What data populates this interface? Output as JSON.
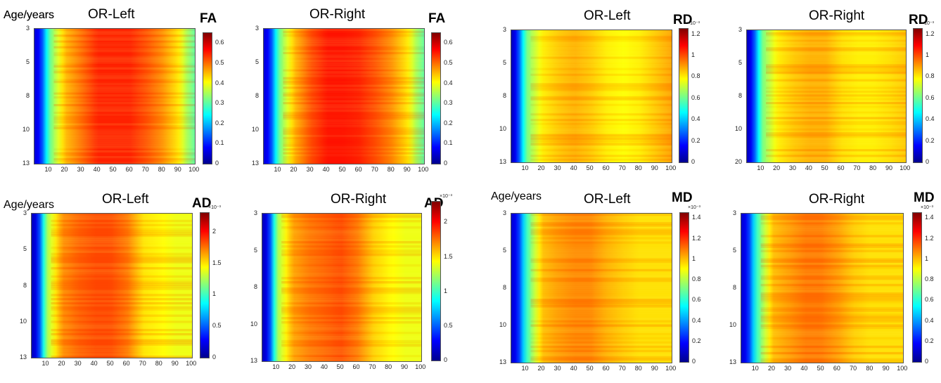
{
  "colors": {
    "jet": [
      "#00008f",
      "#0000ff",
      "#0080ff",
      "#00ffff",
      "#80ff80",
      "#ffff00",
      "#ff8000",
      "#ff0000",
      "#800000"
    ]
  },
  "panels": [
    {
      "id": "fa-left",
      "title": "OR-Left",
      "metric": "FA",
      "ylabel": "Age/years",
      "y_ticks": [
        "3",
        "5",
        "8",
        "10",
        "13"
      ],
      "x_ticks": [
        "10",
        "20",
        "30",
        "40",
        "50",
        "60",
        "70",
        "80",
        "90",
        "100"
      ],
      "cbar_ticks": [
        "0",
        "0.1",
        "0.2",
        "0.3",
        "0.4",
        "0.5",
        "0.6"
      ],
      "cbar_scale": ""
    },
    {
      "id": "fa-right",
      "title": "OR-Right",
      "metric": "FA",
      "ylabel": "",
      "y_ticks": [
        "3",
        "5",
        "8",
        "10",
        "13"
      ],
      "x_ticks": [
        "10",
        "20",
        "30",
        "40",
        "50",
        "60",
        "70",
        "80",
        "90",
        "100"
      ],
      "cbar_ticks": [
        "0",
        "0.1",
        "0.2",
        "0.3",
        "0.4",
        "0.5",
        "0.6"
      ],
      "cbar_scale": ""
    },
    {
      "id": "rd-left",
      "title": "OR-Left",
      "metric": "RD",
      "ylabel": "Age/years",
      "y_ticks": [
        "3",
        "5",
        "8",
        "10",
        "13"
      ],
      "x_ticks": [
        "10",
        "20",
        "30",
        "40",
        "50",
        "60",
        "70",
        "80",
        "90",
        "100"
      ],
      "cbar_ticks": [
        "0",
        "0.2",
        "0.4",
        "0.6",
        "0.8",
        "1",
        "1.2"
      ],
      "cbar_scale": "×10⁻³"
    },
    {
      "id": "rd-right",
      "title": "OR-Right",
      "metric": "RD",
      "ylabel": "",
      "y_ticks": [
        "3",
        "5",
        "8",
        "10",
        "20"
      ],
      "x_ticks": [
        "10",
        "20",
        "30",
        "40",
        "50",
        "60",
        "70",
        "80",
        "90",
        "100"
      ],
      "cbar_ticks": [
        "0",
        "0.2",
        "0.4",
        "0.6",
        "0.8",
        "1",
        "1.2"
      ],
      "cbar_scale": "×10⁻³"
    },
    {
      "id": "ad-left",
      "title": "OR-Left",
      "metric": "AD",
      "ylabel": "Age/years",
      "y_ticks": [
        "3",
        "5",
        "8",
        "10",
        "13"
      ],
      "x_ticks": [
        "10",
        "20",
        "30",
        "40",
        "50",
        "60",
        "70",
        "80",
        "90",
        "100"
      ],
      "cbar_ticks": [
        "0",
        "0.5",
        "1",
        "1.5",
        "2"
      ],
      "cbar_scale": "×10⁻³"
    },
    {
      "id": "ad-right",
      "title": "OR-Right",
      "metric": "AD",
      "ylabel": "",
      "y_ticks": [
        "3",
        "5",
        "8",
        "10",
        "13"
      ],
      "x_ticks": [
        "10",
        "20",
        "30",
        "40",
        "50",
        "60",
        "70",
        "80",
        "90",
        "100"
      ],
      "cbar_ticks": [
        "0",
        "0.5",
        "1",
        "1.5",
        "2"
      ],
      "cbar_scale": "×10⁻³"
    },
    {
      "id": "md-left",
      "title": "OR-Left",
      "metric": "MD",
      "ylabel": "Age/years",
      "y_ticks": [
        "3",
        "5",
        "8",
        "10",
        "13"
      ],
      "x_ticks": [
        "10",
        "20",
        "30",
        "40",
        "50",
        "60",
        "70",
        "80",
        "90",
        "100"
      ],
      "cbar_ticks": [
        "0",
        "0.2",
        "0.4",
        "0.6",
        "0.8",
        "1",
        "1.2",
        "1.4"
      ],
      "cbar_scale": "×10⁻³"
    },
    {
      "id": "md-right",
      "title": "OR-Right",
      "metric": "MD",
      "ylabel": "",
      "y_ticks": [
        "3",
        "5",
        "8",
        "10",
        "13"
      ],
      "x_ticks": [
        "10",
        "20",
        "30",
        "40",
        "50",
        "60",
        "70",
        "80",
        "90",
        "100"
      ],
      "cbar_ticks": [
        "0",
        "0.2",
        "0.4",
        "0.6",
        "0.8",
        "1",
        "1.2",
        "1.4"
      ],
      "cbar_scale": "×10⁻³"
    }
  ],
  "chart_data": [
    {
      "type": "heatmap",
      "title": "OR-Left",
      "colorbar_label": "FA",
      "xlabel": "",
      "ylabel": "Age/years",
      "xlim": [
        1,
        100
      ],
      "y_tick_labels": [
        "3",
        "5",
        "8",
        "10",
        "13"
      ],
      "clim": [
        0,
        0.65
      ],
      "profile_x": [
        1,
        5,
        10,
        20,
        30,
        40,
        50,
        60,
        70,
        80,
        90,
        95,
        100
      ],
      "profile_values": [
        0.05,
        0.1,
        0.3,
        0.45,
        0.5,
        0.55,
        0.55,
        0.55,
        0.52,
        0.48,
        0.42,
        0.35,
        0.3
      ]
    },
    {
      "type": "heatmap",
      "title": "OR-Right",
      "colorbar_label": "FA",
      "xlabel": "",
      "ylabel": "",
      "xlim": [
        1,
        100
      ],
      "y_tick_labels": [
        "3",
        "5",
        "8",
        "10",
        "13"
      ],
      "clim": [
        0,
        0.65
      ],
      "profile_x": [
        1,
        5,
        10,
        20,
        30,
        40,
        50,
        60,
        70,
        80,
        90,
        95,
        100
      ],
      "profile_values": [
        0.05,
        0.1,
        0.3,
        0.45,
        0.52,
        0.56,
        0.56,
        0.55,
        0.52,
        0.48,
        0.42,
        0.35,
        0.3
      ]
    },
    {
      "type": "heatmap",
      "title": "OR-Left",
      "colorbar_label": "RD",
      "colorbar_scale": "×10⁻³",
      "xlabel": "",
      "ylabel": "Age/years",
      "xlim": [
        1,
        100
      ],
      "y_tick_labels": [
        "3",
        "5",
        "8",
        "10",
        "13"
      ],
      "clim": [
        0,
        1.25
      ],
      "profile_x": [
        1,
        5,
        10,
        20,
        30,
        40,
        50,
        60,
        70,
        80,
        90,
        100
      ],
      "profile_values": [
        0.05,
        0.2,
        0.6,
        0.8,
        0.85,
        0.88,
        0.85,
        0.8,
        0.78,
        0.8,
        0.85,
        0.9
      ]
    },
    {
      "type": "heatmap",
      "title": "OR-Right",
      "colorbar_label": "RD",
      "colorbar_scale": "×10⁻³",
      "xlabel": "",
      "ylabel": "",
      "xlim": [
        1,
        100
      ],
      "y_tick_labels": [
        "3",
        "5",
        "8",
        "10",
        "20"
      ],
      "clim": [
        0,
        1.25
      ],
      "profile_x": [
        1,
        5,
        10,
        20,
        30,
        40,
        50,
        60,
        70,
        80,
        90,
        100
      ],
      "profile_values": [
        0.05,
        0.2,
        0.6,
        0.8,
        0.85,
        0.88,
        0.88,
        0.82,
        0.8,
        0.8,
        0.82,
        0.85
      ]
    },
    {
      "type": "heatmap",
      "title": "OR-Left",
      "colorbar_label": "AD",
      "colorbar_scale": "×10⁻³",
      "xlabel": "",
      "ylabel": "Age/years",
      "xlim": [
        1,
        100
      ],
      "y_tick_labels": [
        "3",
        "5",
        "8",
        "10",
        "13"
      ],
      "clim": [
        0,
        2.3
      ],
      "profile_x": [
        1,
        5,
        10,
        20,
        30,
        40,
        50,
        60,
        70,
        80,
        90,
        100
      ],
      "profile_values": [
        0.1,
        0.3,
        1.2,
        1.7,
        1.8,
        1.85,
        1.85,
        1.75,
        1.5,
        1.45,
        1.4,
        1.4
      ]
    },
    {
      "type": "heatmap",
      "title": "OR-Right",
      "colorbar_label": "AD",
      "colorbar_scale": "×10⁻³",
      "xlabel": "",
      "ylabel": "",
      "xlim": [
        1,
        100
      ],
      "y_tick_labels": [
        "3",
        "5",
        "8",
        "10",
        "13"
      ],
      "clim": [
        0,
        2.3
      ],
      "profile_x": [
        1,
        5,
        10,
        20,
        30,
        40,
        50,
        60,
        70,
        80,
        90,
        100
      ],
      "profile_values": [
        0.1,
        0.3,
        1.2,
        1.65,
        1.75,
        1.8,
        1.85,
        1.75,
        1.55,
        1.45,
        1.4,
        1.4
      ]
    },
    {
      "type": "heatmap",
      "title": "OR-Left",
      "colorbar_label": "MD",
      "colorbar_scale": "×10⁻³",
      "xlabel": "",
      "ylabel": "Age/years",
      "xlim": [
        1,
        100
      ],
      "y_tick_labels": [
        "3",
        "5",
        "8",
        "10",
        "13"
      ],
      "clim": [
        0,
        1.45
      ],
      "profile_x": [
        1,
        5,
        10,
        20,
        30,
        40,
        50,
        60,
        70,
        80,
        90,
        100
      ],
      "profile_values": [
        0.1,
        0.2,
        0.6,
        1.0,
        1.05,
        1.08,
        1.08,
        1.02,
        0.98,
        0.95,
        0.95,
        0.95
      ]
    },
    {
      "type": "heatmap",
      "title": "OR-Right",
      "colorbar_label": "MD",
      "colorbar_scale": "×10⁻³",
      "xlabel": "",
      "ylabel": "",
      "xlim": [
        1,
        100
      ],
      "y_tick_labels": [
        "3",
        "5",
        "8",
        "10",
        "13"
      ],
      "clim": [
        0,
        1.45
      ],
      "profile_x": [
        1,
        5,
        10,
        20,
        30,
        40,
        50,
        60,
        70,
        80,
        90,
        100
      ],
      "profile_values": [
        0.1,
        0.2,
        0.6,
        1.0,
        1.05,
        1.1,
        1.1,
        1.05,
        0.98,
        0.95,
        0.95,
        0.95
      ]
    }
  ]
}
